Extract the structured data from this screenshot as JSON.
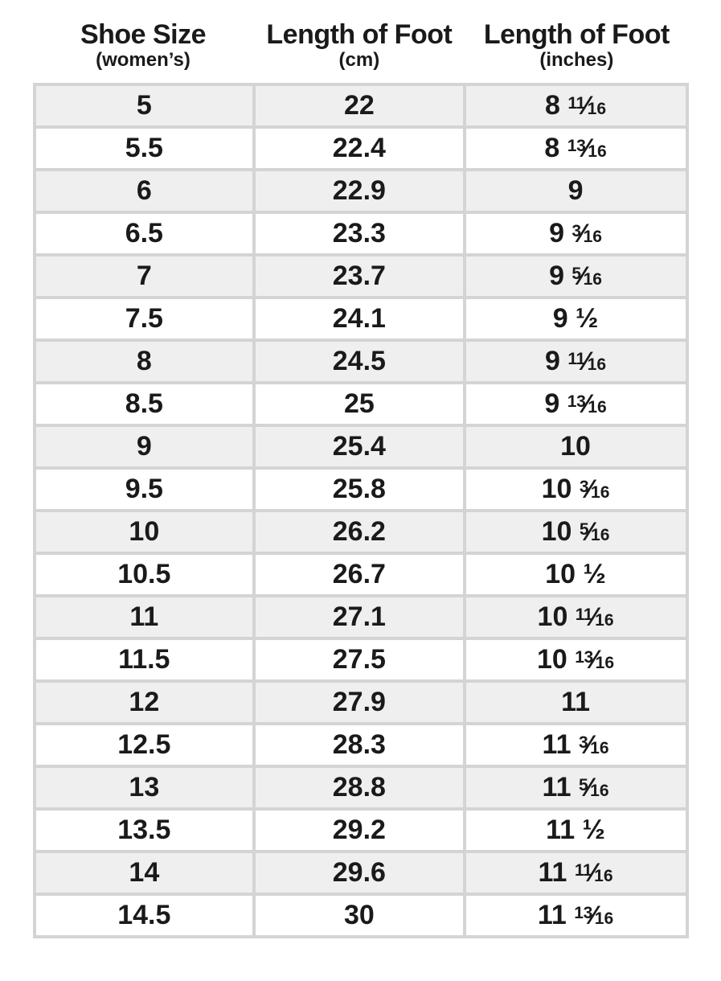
{
  "chart_data": {
    "type": "table",
    "columns": [
      {
        "title": "Shoe Size",
        "subtitle": "(women’s)"
      },
      {
        "title": "Length of Foot",
        "subtitle": "(cm)"
      },
      {
        "title": "Length of Foot",
        "subtitle": "(inches)"
      }
    ],
    "rows": [
      [
        "5",
        "22",
        "8 11/16"
      ],
      [
        "5.5",
        "22.4",
        "8 13/16"
      ],
      [
        "6",
        "22.9",
        "9"
      ],
      [
        "6.5",
        "23.3",
        "9 3/16"
      ],
      [
        "7",
        "23.7",
        "9 5/16"
      ],
      [
        "7.5",
        "24.1",
        "9 1/2"
      ],
      [
        "8",
        "24.5",
        "9 11/16"
      ],
      [
        "8.5",
        "25",
        "9 13/16"
      ],
      [
        "9",
        "25.4",
        "10"
      ],
      [
        "9.5",
        "25.8",
        "10 3/16"
      ],
      [
        "10",
        "26.2",
        "10 5/16"
      ],
      [
        "10.5",
        "26.7",
        "10 1/2"
      ],
      [
        "11",
        "27.1",
        "10 11/16"
      ],
      [
        "11.5",
        "27.5",
        "10 13/16"
      ],
      [
        "12",
        "27.9",
        "11"
      ],
      [
        "12.5",
        "28.3",
        "11 3/16"
      ],
      [
        "13",
        "28.8",
        "11 5/16"
      ],
      [
        "13.5",
        "29.2",
        "11 1/2"
      ],
      [
        "14",
        "29.6",
        "11 11/16"
      ],
      [
        "14.5",
        "30",
        "11 13/16"
      ]
    ],
    "layout_hints": {
      "row_striping": "odd rows shaded, even rows white",
      "grid": "on"
    }
  },
  "colors": {
    "row_stripe": "#efefef",
    "row_plain": "#ffffff",
    "grid_border": "#d4d4d4",
    "text": "#1a1a1a",
    "background": "#ffffff"
  }
}
